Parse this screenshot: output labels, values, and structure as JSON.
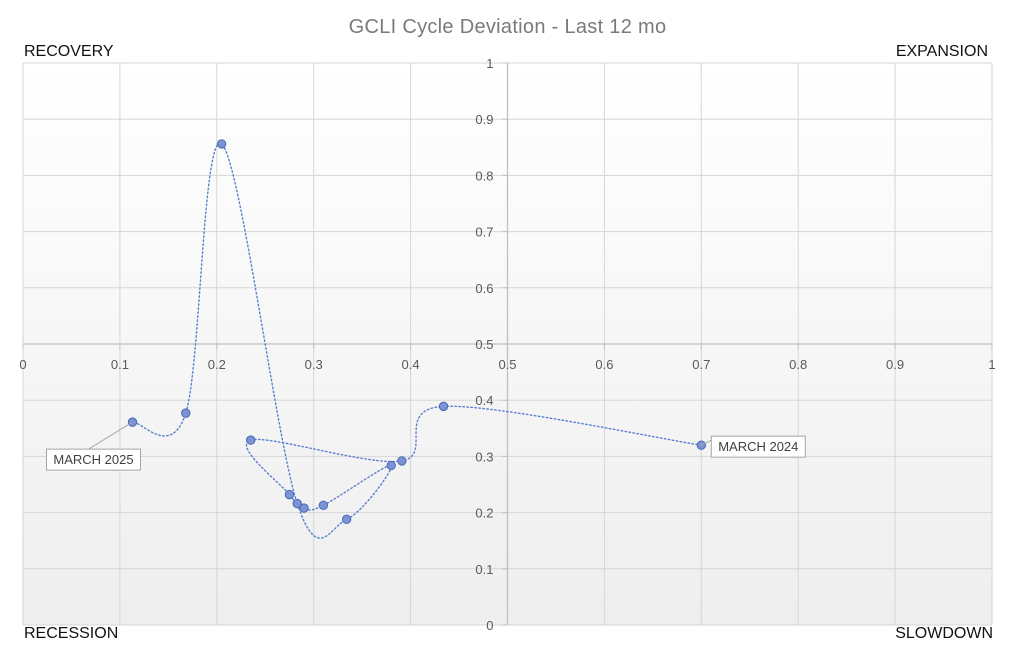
{
  "chart_data": {
    "type": "scatter",
    "title": "GCLI Cycle Deviation - Last 12 mo",
    "quadrant_labels": {
      "top_left": "RECOVERY",
      "top_right": "EXPANSION",
      "bottom_left": "RECESSION",
      "bottom_right": "SLOWDOWN"
    },
    "xlim": [
      0,
      1
    ],
    "ylim": [
      0,
      1
    ],
    "x_ticks": [
      "0",
      "0.1",
      "0.2",
      "0.3",
      "0.4",
      "0.5",
      "0.6",
      "0.7",
      "0.8",
      "0.9",
      "1"
    ],
    "y_ticks": [
      "0",
      "0.1",
      "0.2",
      "0.3",
      "0.4",
      "0.5",
      "0.6",
      "0.7",
      "0.8",
      "0.9",
      "1"
    ],
    "axis_crossing": {
      "x": 0.5,
      "y": 0.5
    },
    "grid": true,
    "line_style": "dotted smoothed",
    "point_color": "#7b93d4",
    "point_edge_color": "#4a68b5",
    "line_color": "#5b7fcf",
    "points": [
      {
        "x": 0.7,
        "y": 0.32
      },
      {
        "x": 0.434,
        "y": 0.389
      },
      {
        "x": 0.391,
        "y": 0.292
      },
      {
        "x": 0.235,
        "y": 0.329
      },
      {
        "x": 0.275,
        "y": 0.232
      },
      {
        "x": 0.29,
        "y": 0.208
      },
      {
        "x": 0.31,
        "y": 0.213
      },
      {
        "x": 0.38,
        "y": 0.284
      },
      {
        "x": 0.334,
        "y": 0.188
      },
      {
        "x": 0.283,
        "y": 0.216
      },
      {
        "x": 0.205,
        "y": 0.856
      },
      {
        "x": 0.168,
        "y": 0.377
      },
      {
        "x": 0.113,
        "y": 0.361
      }
    ],
    "annotations": [
      {
        "text": "MARCH 2024",
        "x": 0.7,
        "y": 0.32
      },
      {
        "text": "MARCH 2025",
        "x": 0.113,
        "y": 0.361
      }
    ]
  }
}
